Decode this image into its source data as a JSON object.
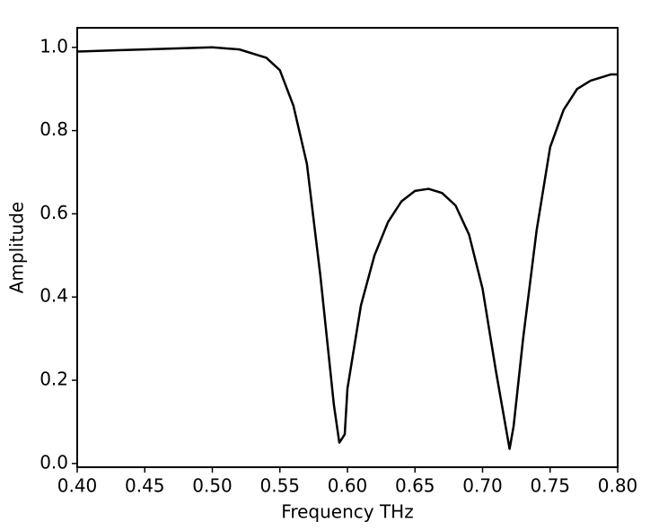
{
  "chart_data": {
    "type": "line",
    "xlabel": "Frequency THz",
    "ylabel": "Amplitude",
    "x": [
      0.4,
      0.45,
      0.5,
      0.52,
      0.54,
      0.55,
      0.56,
      0.57,
      0.58,
      0.59,
      0.594,
      0.598,
      0.6,
      0.61,
      0.62,
      0.63,
      0.64,
      0.65,
      0.66,
      0.67,
      0.68,
      0.69,
      0.7,
      0.71,
      0.72,
      0.723,
      0.73,
      0.74,
      0.75,
      0.76,
      0.77,
      0.78,
      0.79,
      0.795,
      0.8
    ],
    "series": [
      {
        "color": "#000000",
        "values": [
          0.99,
          0.995,
          1.0,
          0.995,
          0.975,
          0.945,
          0.86,
          0.72,
          0.45,
          0.14,
          0.05,
          0.07,
          0.18,
          0.38,
          0.5,
          0.58,
          0.63,
          0.655,
          0.66,
          0.65,
          0.62,
          0.55,
          0.42,
          0.22,
          0.035,
          0.09,
          0.3,
          0.56,
          0.76,
          0.85,
          0.9,
          0.92,
          0.93,
          0.935,
          0.935
        ]
      }
    ],
    "xlim": [
      0.4,
      0.8
    ],
    "xticks": [
      {
        "value": 0.4,
        "label": "0.40"
      },
      {
        "value": 0.45,
        "label": "0.45"
      },
      {
        "value": 0.5,
        "label": "0.50"
      },
      {
        "value": 0.55,
        "label": "0.55"
      },
      {
        "value": 0.6,
        "label": "0.60"
      },
      {
        "value": 0.65,
        "label": "0.65"
      },
      {
        "value": 0.7,
        "label": "0.70"
      },
      {
        "value": 0.75,
        "label": "0.75"
      },
      {
        "value": 0.8,
        "label": "0.80"
      }
    ],
    "ylim": [
      -0.009,
      1.047
    ],
    "yticks": [
      {
        "value": 0,
        "label": "0.0"
      },
      0.2,
      0.4,
      0.6,
      0.8,
      {
        "value": 1,
        "label": "1.0"
      }
    ]
  }
}
